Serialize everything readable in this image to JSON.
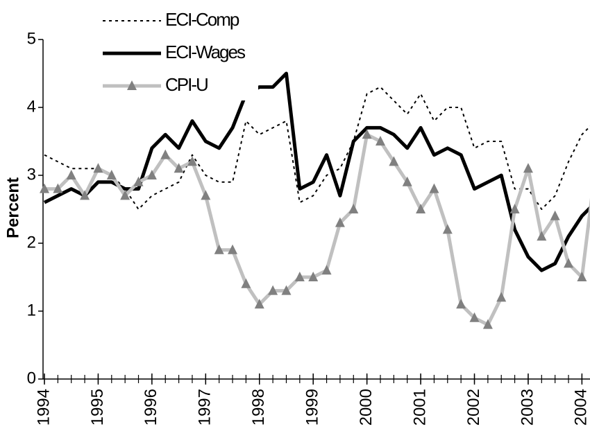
{
  "chart_data": {
    "type": "line",
    "x": [
      1994,
      1994.25,
      1994.5,
      1994.75,
      1995,
      1995.25,
      1995.5,
      1995.75,
      1996,
      1996.25,
      1996.5,
      1996.75,
      1997,
      1997.25,
      1997.5,
      1997.75,
      1998,
      1998.25,
      1998.5,
      1998.75,
      1999,
      1999.25,
      1999.5,
      1999.75,
      2000,
      2000.25,
      2000.5,
      2000.75,
      2001,
      2001.25,
      2001.5,
      2001.75,
      2002,
      2002.25,
      2002.5,
      2002.75,
      2003,
      2003.25,
      2003.5,
      2003.75,
      2004,
      2004.25
    ],
    "series": [
      {
        "name": "ECI-Comp",
        "color": "#000000",
        "style": "dotted",
        "values": [
          3.3,
          3.2,
          3.1,
          3.1,
          3.1,
          3.0,
          2.8,
          2.5,
          2.7,
          2.8,
          2.9,
          3.3,
          3.0,
          2.9,
          2.9,
          3.8,
          3.6,
          3.7,
          3.8,
          2.6,
          2.7,
          3.0,
          3.1,
          3.5,
          4.2,
          4.3,
          4.1,
          3.9,
          4.2,
          3.8,
          4.0,
          4.0,
          3.4,
          3.5,
          3.5,
          2.8,
          2.8,
          2.5,
          2.7,
          3.2,
          3.6,
          3.8
        ]
      },
      {
        "name": "ECI-Wages",
        "color": "#000000",
        "style": "thick",
        "values": [
          2.6,
          2.7,
          2.8,
          2.7,
          2.9,
          2.9,
          2.8,
          2.8,
          3.4,
          3.6,
          3.4,
          3.8,
          3.5,
          3.4,
          3.7,
          4.2,
          4.3,
          4.3,
          4.5,
          2.8,
          2.9,
          3.3,
          2.7,
          3.5,
          3.7,
          3.7,
          3.6,
          3.4,
          3.7,
          3.3,
          3.4,
          3.3,
          2.8,
          2.9,
          3.0,
          2.2,
          1.8,
          1.6,
          1.7,
          2.1,
          2.4,
          2.6
        ]
      },
      {
        "name": "CPI-U",
        "color": "#c0c0c0",
        "marker_color": "#808080",
        "style": "markers",
        "values": [
          2.8,
          2.8,
          3.0,
          2.7,
          3.1,
          3.0,
          2.7,
          2.9,
          3.0,
          3.3,
          3.1,
          3.2,
          2.7,
          1.9,
          1.9,
          1.4,
          1.1,
          1.3,
          1.3,
          1.5,
          1.5,
          1.6,
          2.3,
          2.5,
          3.6,
          3.5,
          3.2,
          2.9,
          2.5,
          2.8,
          2.2,
          1.1,
          0.9,
          0.8,
          1.2,
          2.5,
          3.1,
          2.1,
          2.4,
          1.7,
          1.5,
          3.1
        ]
      }
    ],
    "y_label": "Percent",
    "xlim": [
      1994,
      2004.15
    ],
    "xticks": [
      1994,
      1995,
      1996,
      1997,
      1998,
      1999,
      2000,
      2001,
      2002,
      2003,
      2004
    ],
    "ylim": [
      0,
      5
    ],
    "yticks": [
      0,
      1,
      2,
      3,
      4,
      5
    ],
    "grid": false,
    "legend": "upper left"
  }
}
